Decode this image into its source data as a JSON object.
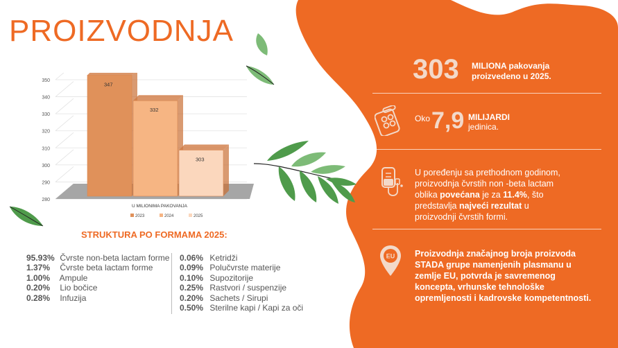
{
  "title": "PROIZVODNJA",
  "chart_data": {
    "type": "bar",
    "categories": [
      "U MILIONIMA PAKOVANJA"
    ],
    "series": [
      {
        "name": "2023",
        "values": [
          347
        ]
      },
      {
        "name": "2024",
        "values": [
          332
        ]
      },
      {
        "name": "2025",
        "values": [
          303
        ]
      }
    ],
    "yticks": [
      280,
      290,
      300,
      310,
      320,
      330,
      340,
      350
    ],
    "ylim": [
      280,
      350
    ],
    "xlabel": "U MILIONIMA PAKOVANJA",
    "legend_position": "bottom",
    "colors": [
      "#e0915a",
      "#f6b583",
      "#fbd7bd"
    ]
  },
  "struktura": {
    "title": "STRUKTURA PO FORMAMA 2025:",
    "left": [
      {
        "pct": "95.93%",
        "label": "Čvrste non-beta lactam forme"
      },
      {
        "pct": "1.37%",
        "label": "Čvrste beta lactam forme"
      },
      {
        "pct": "1.00%",
        "label": "Ampule"
      },
      {
        "pct": "0.20%",
        "label": "Lio bočice"
      },
      {
        "pct": "0.28%",
        "label": "Infuzija"
      }
    ],
    "right": [
      {
        "pct": "0.06%",
        "label": "Ketridži"
      },
      {
        "pct": "0.09%",
        "label": "Polučvrste materije"
      },
      {
        "pct": "0.10%",
        "label": "Supozitorije"
      },
      {
        "pct": "0.25%",
        "label": "Rastvori / suspenzije"
      },
      {
        "pct": "0.20%",
        "label": "Sachets / Sirupi"
      },
      {
        "pct": "0.50%",
        "label": "Sterilne kapi / Kapi za oči"
      }
    ]
  },
  "stats": {
    "s1_number": "303",
    "s1_text_1": "MILIONA pakovanja",
    "s1_text_2": "proizvedeno u 2025.",
    "s2_prefix": "Oko",
    "s2_number": "7,9",
    "s2_text_1": "MILIJARDI",
    "s2_text_2": "jedinica.",
    "s3_p1": "U poređenju sa prethodnom godinom,",
    "s3_p2": "proizvodnja čvrstih non -beta lactam",
    "s3_p3a": "oblika ",
    "s3_p3b": "povećana",
    "s3_p3c": " je za ",
    "s3_p3d": "11.4%",
    "s3_p3e": ", što",
    "s3_p4a": "predstavlja ",
    "s3_p4b": "najveći rezultat",
    "s3_p4c": " u",
    "s3_p5": "proizvodnji čvrstih formi.",
    "s4_lines": [
      "Proizvodnja značajnog broja proizvoda",
      "STADA grupe namenjenih plasmanu u",
      "zemlje EU, potvrda je savremenog",
      "koncepta, vrhunske tehnološke",
      "opremljenosti i kadrovske kompetentnosti."
    ],
    "eu_badge": "EU"
  }
}
